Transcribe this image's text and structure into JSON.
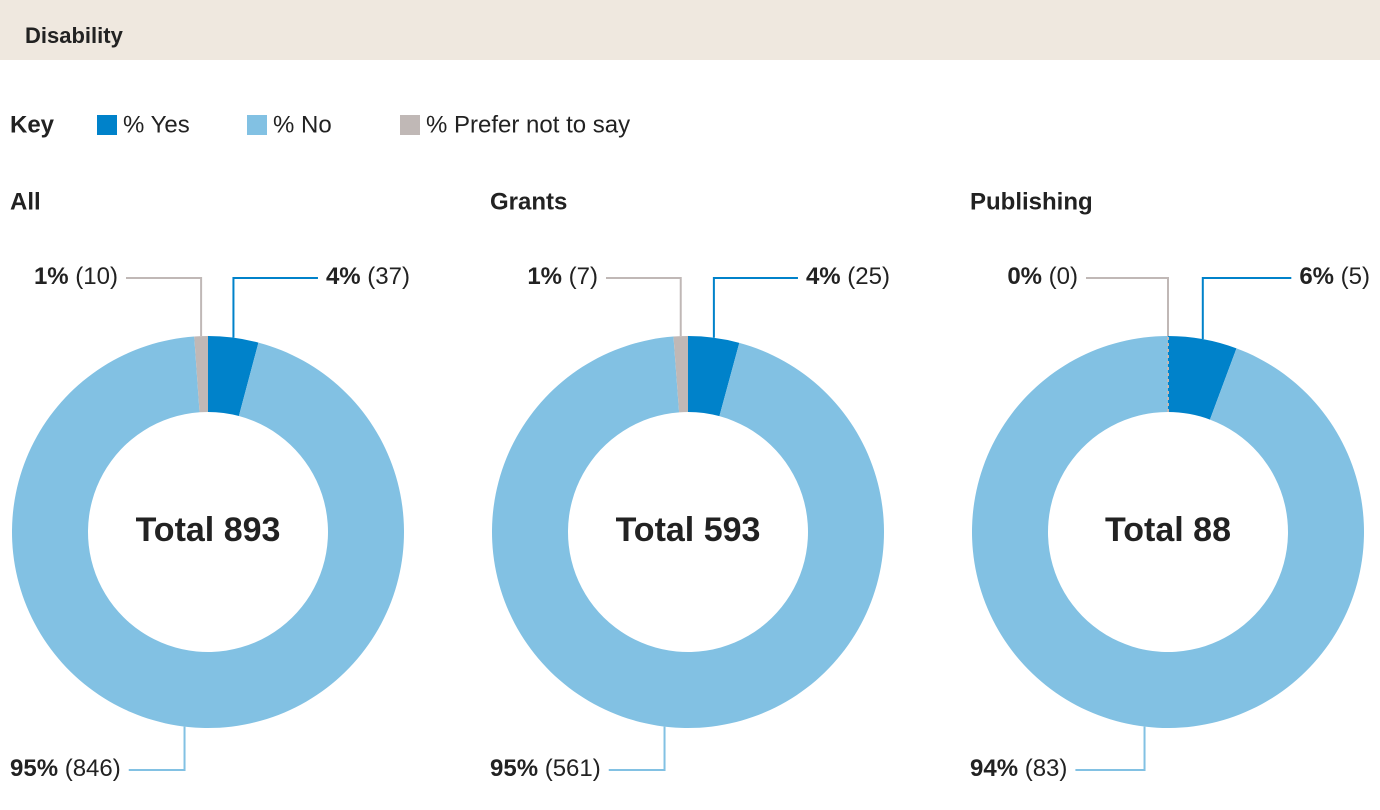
{
  "header": "Disability",
  "legend_title": "Key",
  "chart_data": [
    {
      "type": "donut",
      "title": "All",
      "categories": [
        "% Yes",
        "% No",
        "% Prefer not to say"
      ],
      "colors": [
        "#0082ca",
        "#82c1e3",
        "#c0b8b6"
      ],
      "values": [
        4,
        95,
        1
      ],
      "value_labels": [
        "4%",
        "95%",
        "1%"
      ],
      "counts": [
        37,
        846,
        10
      ],
      "count_labels": [
        "(37)",
        "(846)",
        "(10)"
      ],
      "center_label": "Total 893"
    },
    {
      "type": "donut",
      "title": "Grants",
      "categories": [
        "% Yes",
        "% No",
        "% Prefer not to say"
      ],
      "colors": [
        "#0082ca",
        "#82c1e3",
        "#c0b8b6"
      ],
      "values": [
        4,
        95,
        1
      ],
      "value_labels": [
        "4%",
        "95%",
        "1%"
      ],
      "counts": [
        25,
        561,
        7
      ],
      "count_labels": [
        "(25)",
        "(561)",
        "(7)"
      ],
      "center_label": "Total 593"
    },
    {
      "type": "donut",
      "title": "Publishing",
      "categories": [
        "% Yes",
        "% No",
        "% Prefer not to say"
      ],
      "colors": [
        "#0082ca",
        "#82c1e3",
        "#c0b8b6"
      ],
      "values": [
        6,
        94,
        0
      ],
      "value_labels": [
        "6%",
        "94%",
        "0%"
      ],
      "counts": [
        5,
        83,
        0
      ],
      "count_labels": [
        "(5)",
        "(83)",
        "(0)"
      ],
      "center_label": "Total 88"
    }
  ]
}
